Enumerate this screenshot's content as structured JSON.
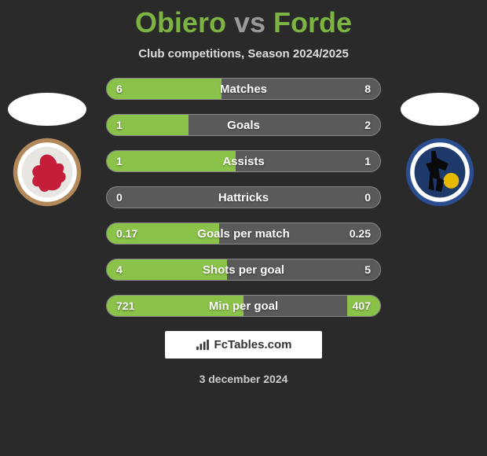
{
  "title": {
    "player1": "Obiero",
    "vs": "vs",
    "player2": "Forde"
  },
  "subtitle": "Club competitions, Season 2024/2025",
  "stats": [
    {
      "label": "Matches",
      "l": "6",
      "r": "8",
      "lw": 42,
      "rw": 0
    },
    {
      "label": "Goals",
      "l": "1",
      "r": "2",
      "lw": 30,
      "rw": 0
    },
    {
      "label": "Assists",
      "l": "1",
      "r": "1",
      "lw": 47,
      "rw": 0
    },
    {
      "label": "Hattricks",
      "l": "0",
      "r": "0",
      "lw": 0,
      "rw": 0
    },
    {
      "label": "Goals per match",
      "l": "0.17",
      "r": "0.25",
      "lw": 41,
      "rw": 0
    },
    {
      "label": "Shots per goal",
      "l": "4",
      "r": "5",
      "lw": 44,
      "rw": 0
    },
    {
      "label": "Min per goal",
      "l": "721",
      "r": "407",
      "lw": 50,
      "rw": 12
    }
  ],
  "colors": {
    "bg": "#2a2a2a",
    "bar_fill": "#8bc34a",
    "bar_track": "#5a5a5a",
    "title_accent": "#7cb342",
    "title_vs": "#999999"
  },
  "brand": "FcTables.com",
  "date": "3 december 2024",
  "crests": {
    "left": {
      "ring_outer": "#b1895b",
      "ring_inner": "#ffffff",
      "center": "#e8e6e2",
      "figure": "#c41e3a"
    },
    "right": {
      "ring_outer": "#2a4d8f",
      "ring_inner": "#ffffff",
      "center": "#1e3a6b",
      "figure": "#0a0a0a",
      "accent": "#e6b800"
    }
  }
}
